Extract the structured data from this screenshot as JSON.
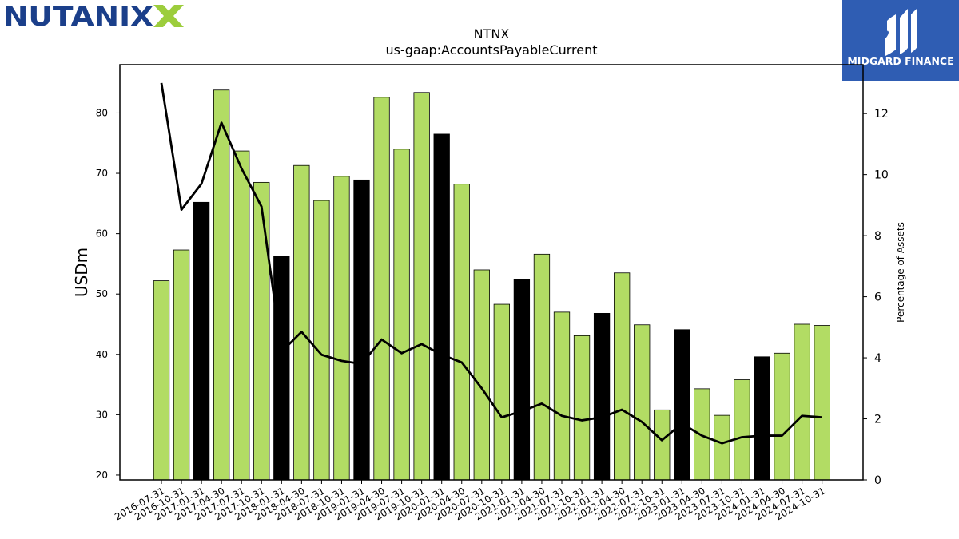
{
  "brand": {
    "logo_text": "NUTANIX",
    "badge_text": "MIDGARD FINANCE",
    "logo_color": "#1b3f8a",
    "logo_x_color": "#9ccd3c",
    "badge_color": "#2f5db3"
  },
  "colors": {
    "bar_normal": "#b2dc64",
    "bar_highlight": "#000000",
    "line": "#000000"
  },
  "chart_data": {
    "type": "bar",
    "title": "NTNX",
    "subtitle": "us-gaap:AccountsPayableCurrent",
    "ylabel": "USDm",
    "y2label": "Percentage of Assets",
    "ylim": [
      19.2,
      88
    ],
    "y2lim": [
      0,
      13.6
    ],
    "yticks": [
      20,
      30,
      40,
      50,
      60,
      70,
      80
    ],
    "y2ticks": [
      0,
      2,
      4,
      6,
      8,
      10,
      12
    ],
    "categories": [
      "2016-07-31",
      "2016-10-31",
      "2017-01-31",
      "2017-04-30",
      "2017-07-31",
      "2017-10-31",
      "2018-01-31",
      "2018-04-30",
      "2018-07-31",
      "2018-10-31",
      "2019-01-31",
      "2019-04-30",
      "2019-07-31",
      "2019-10-31",
      "2020-01-31",
      "2020-04-30",
      "2020-07-31",
      "2020-10-31",
      "2021-01-31",
      "2021-04-30",
      "2021-07-31",
      "2021-10-31",
      "2022-01-31",
      "2022-04-30",
      "2022-07-31",
      "2022-10-31",
      "2023-01-31",
      "2023-04-30",
      "2023-07-31",
      "2023-10-31",
      "2024-01-31",
      "2024-04-30",
      "2024-07-31",
      "2024-10-31"
    ],
    "series": [
      {
        "type": "bar",
        "axis": "left",
        "values": [
          52.2,
          57.3,
          65.2,
          83.8,
          73.7,
          68.5,
          56.2,
          71.3,
          65.5,
          69.5,
          68.9,
          82.6,
          74.0,
          83.4,
          76.5,
          68.2,
          54.0,
          48.3,
          52.4,
          56.6,
          47.0,
          43.1,
          46.8,
          53.5,
          44.9,
          30.8,
          44.1,
          34.3,
          29.9,
          35.8,
          39.6,
          40.2,
          45.0,
          44.8
        ],
        "highlight": [
          false,
          false,
          true,
          false,
          false,
          false,
          true,
          false,
          false,
          false,
          true,
          false,
          false,
          false,
          true,
          false,
          false,
          false,
          true,
          false,
          false,
          false,
          true,
          false,
          false,
          false,
          true,
          false,
          false,
          false,
          true,
          false,
          false,
          false
        ]
      },
      {
        "type": "line",
        "axis": "right",
        "values": [
          13.0,
          8.85,
          9.7,
          11.7,
          10.2,
          8.95,
          4.2,
          4.85,
          4.1,
          3.9,
          3.8,
          4.6,
          4.15,
          4.45,
          4.1,
          3.85,
          3.0,
          2.05,
          2.25,
          2.5,
          2.1,
          1.95,
          2.05,
          2.3,
          1.9,
          1.3,
          1.85,
          1.45,
          1.2,
          1.4,
          1.45,
          1.45,
          2.1,
          2.05
        ]
      }
    ]
  }
}
